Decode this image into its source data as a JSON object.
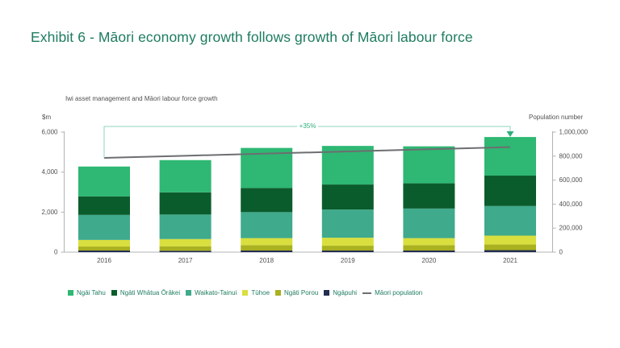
{
  "page": {
    "title": "Exhibit 6 - Māori economy growth follows growth of Māori labour force"
  },
  "chart_data": {
    "type": "bar",
    "subtype": "stacked-bars-with-line",
    "title": "Iwi asset management and Māori labour force growth",
    "categories": [
      "2016",
      "2017",
      "2018",
      "2019",
      "2020",
      "2021"
    ],
    "series": [
      {
        "name": "Ngāi Tahu",
        "color": "#2eb873",
        "values": [
          1490,
          1610,
          2000,
          1930,
          1850,
          1930
        ]
      },
      {
        "name": "Ngāti Whātua Ōrākei",
        "color": "#0b5c2c",
        "values": [
          930,
          1110,
          1210,
          1250,
          1260,
          1520
        ]
      },
      {
        "name": "Waikato-Tainui",
        "color": "#3faa8c",
        "values": [
          1250,
          1225,
          1300,
          1410,
          1480,
          1480
        ]
      },
      {
        "name": "Tūhoe",
        "color": "#d9df3e",
        "values": [
          330,
          360,
          350,
          400,
          350,
          445
        ]
      },
      {
        "name": "Ngāti Porou",
        "color": "#a9b120",
        "values": [
          200,
          225,
          270,
          240,
          270,
          280
        ]
      },
      {
        "name": "Ngāpuhi",
        "color": "#232d50",
        "values": [
          80,
          70,
          80,
          80,
          80,
          100
        ]
      }
    ],
    "stack_order": "last-series-at-bottom",
    "line_series": {
      "name": "Māori population",
      "color": "#6d6e71",
      "axis": "right",
      "values": [
        785000,
        803000,
        821000,
        839000,
        857000,
        875000
      ]
    },
    "left_axis": {
      "label": "$m",
      "ticks": [
        0,
        2000,
        4000,
        6000
      ],
      "max": 6000
    },
    "right_axis": {
      "label": "Population number",
      "ticks": [
        0,
        200000,
        400000,
        600000,
        800000,
        1000000
      ],
      "max": 1000000
    },
    "annotation": {
      "text": "+35%",
      "from_category": "2016",
      "to_category": "2021"
    },
    "legend_position": "bottom",
    "grid": false
  },
  "colors": {
    "title": "#1e7c5f",
    "axis_line": "#b1b3b6",
    "tick_text": "#505152",
    "bracket": "#8fd6bf",
    "accent": "#2fae7c"
  }
}
